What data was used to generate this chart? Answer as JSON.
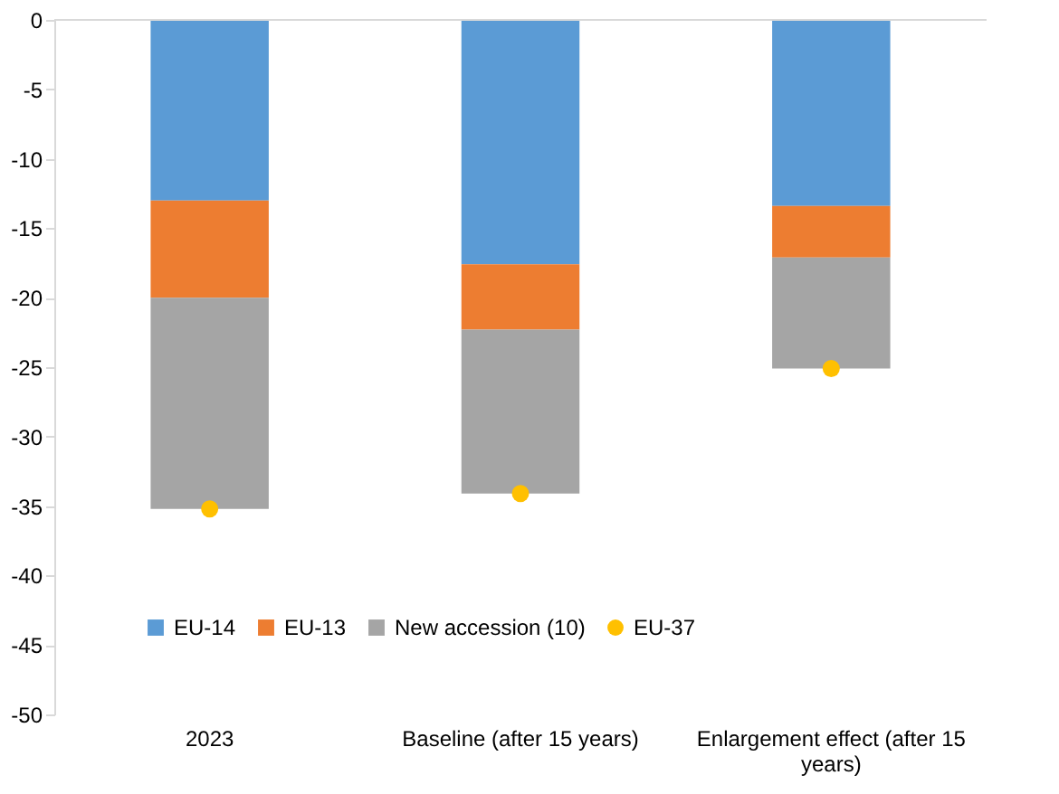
{
  "chart_data": {
    "type": "bar",
    "stacked": true,
    "categories": [
      "2023",
      "Baseline (after 15 years)",
      "Enlargement effect (after 15 years)"
    ],
    "series": [
      {
        "name": "EU-14",
        "color": "#5b9bd5",
        "values": [
          -13.0,
          -17.6,
          -13.4
        ]
      },
      {
        "name": "EU-13",
        "color": "#ed7d31",
        "values": [
          -7.0,
          -4.7,
          -3.7
        ]
      },
      {
        "name": "New accession (10)",
        "color": "#a5a5a5",
        "values": [
          -15.2,
          -11.8,
          -8.0
        ]
      },
      {
        "name": "EU-37",
        "type": "scatter",
        "marker": "circle",
        "color": "#ffc000",
        "values": [
          -35.2,
          -34.1,
          -25.1
        ]
      }
    ],
    "ylim": [
      -50,
      0
    ],
    "yticks": [
      0,
      -5,
      -10,
      -15,
      -20,
      -25,
      -30,
      -35,
      -40,
      -45,
      -50
    ],
    "grid": false,
    "legend": "bottom"
  }
}
